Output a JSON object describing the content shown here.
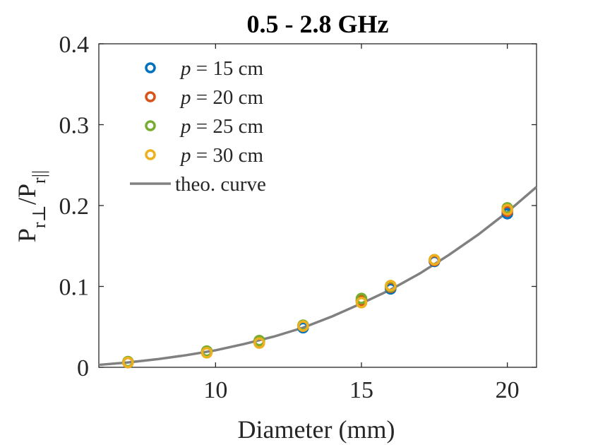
{
  "chart_data": {
    "type": "scatter",
    "title": "0.5 - 2.8 GHz",
    "xlabel": "Diameter (mm)",
    "ylabel_main": "P",
    "ylabel_sub1": "r⊥",
    "ylabel_slash": "/P",
    "ylabel_sub2": "r||",
    "xlim": [
      6,
      21
    ],
    "ylim": [
      0,
      0.4
    ],
    "xticks": [
      10,
      15,
      20
    ],
    "yticks": [
      0,
      0.1,
      0.2,
      0.3,
      0.4
    ],
    "xtick_labels": [
      "10",
      "15",
      "20"
    ],
    "ytick_labels": [
      "0",
      "0.1",
      "0.2",
      "0.3",
      "0.4"
    ],
    "series": [
      {
        "name": "p = 15 cm",
        "symbol": "p",
        "label": "= 15 cm",
        "color": "#0072BD",
        "x": [
          7,
          9.7,
          11.5,
          13,
          15,
          16,
          17.5,
          20
        ],
        "y": [
          0.006,
          0.019,
          0.031,
          0.049,
          0.082,
          0.097,
          0.131,
          0.19
        ]
      },
      {
        "name": "p = 20 cm",
        "symbol": "p",
        "label": "= 20 cm",
        "color": "#D95319",
        "x": [
          7,
          9.7,
          11.5,
          13,
          15,
          16,
          17.5,
          20
        ],
        "y": [
          0.006,
          0.019,
          0.032,
          0.051,
          0.083,
          0.099,
          0.132,
          0.193
        ]
      },
      {
        "name": "p = 25 cm",
        "symbol": "p",
        "label": "= 25 cm",
        "color": "#77AC30",
        "x": [
          7,
          9.7,
          11.5,
          13,
          15,
          16,
          17.5,
          20
        ],
        "y": [
          0.007,
          0.02,
          0.033,
          0.052,
          0.085,
          0.1,
          0.133,
          0.197
        ]
      },
      {
        "name": "p = 30 cm",
        "symbol": "p",
        "label": "= 30 cm",
        "color": "#EDB120",
        "x": [
          7,
          9.7,
          11.5,
          13,
          15,
          16,
          17.5,
          20
        ],
        "y": [
          0.006,
          0.018,
          0.03,
          0.051,
          0.08,
          0.101,
          0.133,
          0.195
        ]
      }
    ],
    "curve": {
      "name": "theo. curve",
      "color": "#808080",
      "x": [
        6,
        7,
        8,
        9,
        10,
        11,
        12,
        13,
        14,
        15,
        16,
        17,
        18,
        19,
        20,
        21
      ],
      "y": [
        0.003,
        0.006,
        0.01,
        0.015,
        0.021,
        0.029,
        0.038,
        0.049,
        0.063,
        0.079,
        0.096,
        0.116,
        0.139,
        0.164,
        0.192,
        0.223
      ]
    },
    "legend_position": "top-left"
  }
}
